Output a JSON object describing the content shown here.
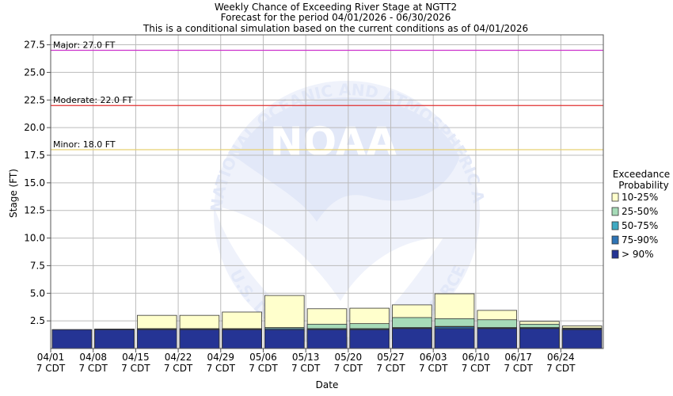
{
  "chart_data": {
    "type": "bar",
    "title_lines": [
      "Weekly Chance of Exceeding River Stage at NGTT2",
      "Forecast for the period 04/01/2026 - 06/30/2026",
      "This is a conditional simulation based on the current conditions as of 04/01/2026"
    ],
    "xlabel": "Date",
    "ylabel": "Stage (FT)",
    "ylim": [
      0.0,
      28.4
    ],
    "y_ticks": [
      "2.5",
      "5.0",
      "7.5",
      "10.0",
      "12.5",
      "15.0",
      "17.5",
      "20.0",
      "22.5",
      "25.0",
      "27.5"
    ],
    "grid": true,
    "categories": [
      "04/01",
      "04/08",
      "04/15",
      "04/22",
      "04/29",
      "05/06",
      "05/13",
      "05/20",
      "05/27",
      "06/03",
      "06/10",
      "06/17",
      "06/24"
    ],
    "category_suffix": "7 CDT",
    "thresholds": [
      {
        "label": "Major: 27.0 FT",
        "value": 27.0,
        "color": "#cc33cc"
      },
      {
        "label": "Moderate: 22.0 FT",
        "value": 22.0,
        "color": "#e03030"
      },
      {
        "label": "Minor: 18.0 FT",
        "value": 18.0,
        "color": "#e8d070"
      }
    ],
    "legend": {
      "title": "Exceedance Probability",
      "placement": "right",
      "entries": [
        {
          "label": "10-25%",
          "color": "#ffffcc"
        },
        {
          "label": "25-50%",
          "color": "#a6dbb8"
        },
        {
          "label": "50-75%",
          "color": "#3fa9c2"
        },
        {
          "label": "75-90%",
          "color": "#2e74b5"
        },
        {
          "label": "> 90%",
          "color": "#253494"
        }
      ]
    },
    "series": [
      {
        "name": "> 90%",
        "values": [
          1.7,
          1.7,
          1.7,
          1.7,
          1.7,
          1.7,
          1.7,
          1.7,
          1.8,
          1.8,
          1.8,
          1.8,
          1.7
        ]
      },
      {
        "name": "75-90%",
        "values": [
          1.7,
          1.75,
          1.75,
          1.75,
          1.75,
          1.8,
          1.75,
          1.75,
          1.85,
          1.95,
          1.85,
          1.85,
          1.75
        ]
      },
      {
        "name": "50-75%",
        "values": [
          1.7,
          1.75,
          1.75,
          1.75,
          1.75,
          1.8,
          1.8,
          1.8,
          1.9,
          2.0,
          1.9,
          1.9,
          1.8
        ]
      },
      {
        "name": "25-50%",
        "values": [
          1.7,
          1.75,
          1.8,
          1.8,
          1.8,
          1.9,
          2.2,
          2.25,
          2.8,
          2.7,
          2.6,
          2.2,
          1.85
        ]
      },
      {
        "name": "10-25%",
        "values": [
          1.7,
          1.75,
          3.0,
          3.0,
          3.3,
          4.8,
          3.6,
          3.65,
          3.95,
          4.95,
          3.45,
          2.45,
          2.05
        ]
      }
    ],
    "watermark": {
      "text_top": "NATIONAL OCEANIC AND ATMOSPHERIC ADMINISTRATION",
      "text_center": "NOAA",
      "text_bottom": "U.S. DEPARTMENT OF COMMERCE"
    }
  }
}
